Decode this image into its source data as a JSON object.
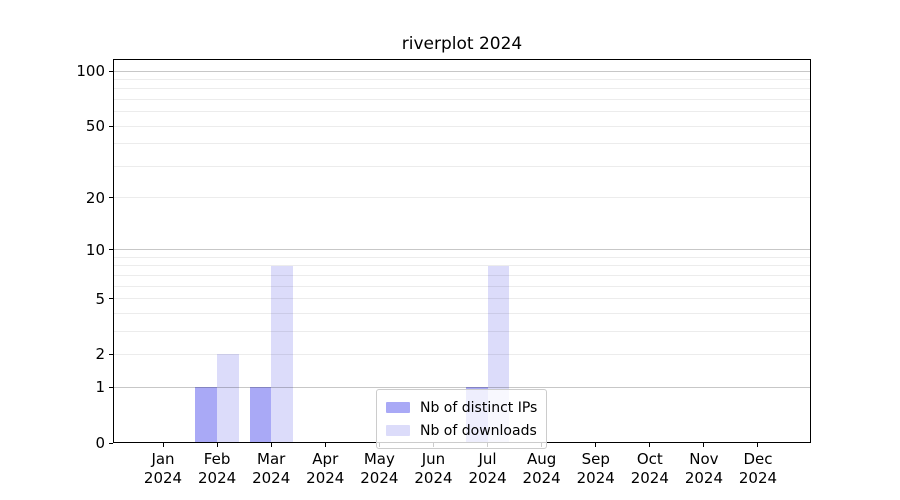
{
  "chart_data": {
    "type": "bar",
    "title": "riverplot 2024",
    "x_categories": [
      "Jan",
      "Feb",
      "Mar",
      "Apr",
      "May",
      "Jun",
      "Jul",
      "Aug",
      "Sep",
      "Oct",
      "Nov",
      "Dec"
    ],
    "x_year_label": "2024",
    "series": [
      {
        "name": "Nb of distinct IPs",
        "color": "#a9a9f6",
        "values": [
          0,
          1,
          1,
          0,
          0,
          0,
          1,
          0,
          0,
          0,
          0,
          0
        ]
      },
      {
        "name": "Nb of downloads",
        "color": "#dcdcfa",
        "values": [
          0,
          2,
          8,
          0,
          0,
          0,
          8,
          0,
          0,
          0,
          0,
          0
        ]
      }
    ],
    "y_scale": "log1p",
    "ylim": [
      0,
      116.3
    ],
    "y_max": 116.3,
    "y_tick_labels": [
      0,
      1,
      2,
      5,
      10,
      20,
      50,
      100
    ],
    "y_major_gridlines": [
      1,
      10,
      100
    ],
    "y_minor_gridlines": [
      2,
      3,
      4,
      5,
      6,
      7,
      8,
      9,
      20,
      30,
      40,
      50,
      60,
      70,
      80,
      90
    ],
    "grid": true,
    "legend_position": "lower center"
  },
  "colors": {
    "background": "#ffffff",
    "spine": "#000000",
    "grid_major": "rgba(0,0,0,0.22)",
    "grid_minor": "rgba(0,0,0,0.075)"
  }
}
